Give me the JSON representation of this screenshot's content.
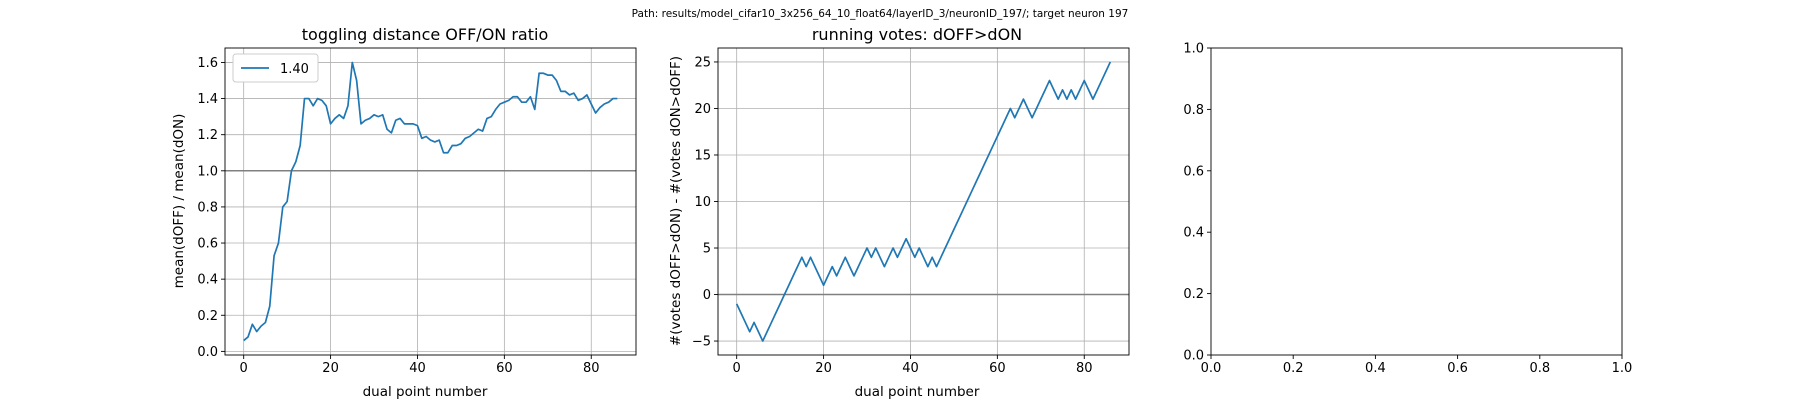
{
  "suptitle": "Path: results/model_cifar10_3x256_64_10_float64/layerID_3/neuronID_197/; target neuron 197",
  "chart_data": [
    {
      "type": "line",
      "title": "toggling distance OFF/ON ratio",
      "xlabel": "dual point number",
      "ylabel": "mean(dOFF) / mean(dON)",
      "xlim": [
        -4.3,
        90.3
      ],
      "ylim": [
        -0.02,
        1.68
      ],
      "xticks": [
        0,
        20,
        40,
        60,
        80
      ],
      "yticks": [
        0.0,
        0.2,
        0.4,
        0.6,
        0.8,
        1.0,
        1.2,
        1.4,
        1.6
      ],
      "ytick_labels": [
        "0.0",
        "0.2",
        "0.4",
        "0.6",
        "0.8",
        "1.0",
        "1.2",
        "1.4",
        "1.6"
      ],
      "grid": true,
      "legend": {
        "location": "upper left",
        "entries": [
          "1.40"
        ]
      },
      "hline": 1.0,
      "series": [
        {
          "name": "1.40",
          "color": "#1f77b4",
          "x": [
            0,
            1,
            2,
            3,
            4,
            5,
            6,
            7,
            8,
            9,
            10,
            11,
            12,
            13,
            14,
            15,
            16,
            17,
            18,
            19,
            20,
            21,
            22,
            23,
            24,
            25,
            26,
            27,
            28,
            29,
            30,
            31,
            32,
            33,
            34,
            35,
            36,
            37,
            38,
            39,
            40,
            41,
            42,
            43,
            44,
            45,
            46,
            47,
            48,
            49,
            50,
            51,
            52,
            53,
            54,
            55,
            56,
            57,
            58,
            59,
            60,
            61,
            62,
            63,
            64,
            65,
            66,
            67,
            68,
            69,
            70,
            71,
            72,
            73,
            74,
            75,
            76,
            77,
            78,
            79,
            80,
            81,
            82,
            83,
            84,
            85,
            86
          ],
          "y": [
            0.06,
            0.08,
            0.15,
            0.11,
            0.14,
            0.16,
            0.25,
            0.53,
            0.6,
            0.8,
            0.83,
            1.0,
            1.05,
            1.14,
            1.4,
            1.4,
            1.36,
            1.4,
            1.39,
            1.36,
            1.26,
            1.29,
            1.31,
            1.29,
            1.36,
            1.6,
            1.5,
            1.26,
            1.28,
            1.29,
            1.31,
            1.3,
            1.31,
            1.23,
            1.21,
            1.28,
            1.29,
            1.26,
            1.26,
            1.26,
            1.25,
            1.18,
            1.19,
            1.17,
            1.16,
            1.17,
            1.1,
            1.1,
            1.14,
            1.14,
            1.15,
            1.18,
            1.19,
            1.21,
            1.23,
            1.22,
            1.29,
            1.3,
            1.34,
            1.37,
            1.38,
            1.39,
            1.41,
            1.41,
            1.38,
            1.38,
            1.41,
            1.34,
            1.54,
            1.54,
            1.53,
            1.53,
            1.5,
            1.44,
            1.44,
            1.42,
            1.43,
            1.39,
            1.4,
            1.42,
            1.37,
            1.32,
            1.35,
            1.37,
            1.38,
            1.4,
            1.4
          ]
        }
      ]
    },
    {
      "type": "line",
      "title": "running votes: dOFF>dON",
      "xlabel": "dual point number",
      "ylabel": "#(votes dOFF>dON) - #(votes dON>dOFF)",
      "xlim": [
        -4.3,
        90.3
      ],
      "ylim": [
        -6.5,
        26.5
      ],
      "xticks": [
        0,
        20,
        40,
        60,
        80
      ],
      "yticks": [
        -5,
        0,
        5,
        10,
        15,
        20,
        25
      ],
      "ytick_labels": [
        "−5",
        "0",
        "5",
        "10",
        "15",
        "20",
        "25"
      ],
      "grid": true,
      "hline": 0,
      "series": [
        {
          "color": "#1f77b4",
          "x": [
            0,
            1,
            2,
            3,
            4,
            5,
            6,
            7,
            8,
            9,
            10,
            11,
            12,
            13,
            14,
            15,
            16,
            17,
            18,
            19,
            20,
            21,
            22,
            23,
            24,
            25,
            26,
            27,
            28,
            29,
            30,
            31,
            32,
            33,
            34,
            35,
            36,
            37,
            38,
            39,
            40,
            41,
            42,
            43,
            44,
            45,
            46,
            47,
            48,
            49,
            50,
            51,
            52,
            53,
            54,
            55,
            56,
            57,
            58,
            59,
            60,
            61,
            62,
            63,
            64,
            65,
            66,
            67,
            68,
            69,
            70,
            71,
            72,
            73,
            74,
            75,
            76,
            77,
            78,
            79,
            80,
            81,
            82,
            83,
            84,
            85,
            86
          ],
          "y": [
            -1,
            -2,
            -3,
            -4,
            -3,
            -4,
            -5,
            -4,
            -3,
            -2,
            -1,
            0,
            1,
            2,
            3,
            4,
            3,
            4,
            3,
            2,
            1,
            2,
            3,
            2,
            3,
            4,
            3,
            2,
            3,
            4,
            5,
            4,
            5,
            4,
            3,
            4,
            5,
            4,
            5,
            6,
            5,
            4,
            5,
            4,
            3,
            4,
            3,
            4,
            5,
            6,
            7,
            8,
            9,
            10,
            11,
            12,
            13,
            14,
            15,
            16,
            17,
            18,
            19,
            20,
            19,
            20,
            21,
            20,
            19,
            20,
            21,
            22,
            23,
            22,
            21,
            22,
            21,
            22,
            21,
            22,
            23,
            22,
            21,
            22,
            23,
            24,
            25
          ]
        }
      ]
    },
    {
      "type": "line",
      "title": "",
      "xlabel": "",
      "ylabel": "",
      "xlim": [
        0,
        1
      ],
      "ylim": [
        0,
        1
      ],
      "xticks": [
        0.0,
        0.2,
        0.4,
        0.6,
        0.8,
        1.0
      ],
      "yticks": [
        0.0,
        0.2,
        0.4,
        0.6,
        0.8,
        1.0
      ],
      "xtick_labels": [
        "0.0",
        "0.2",
        "0.4",
        "0.6",
        "0.8",
        "1.0"
      ],
      "ytick_labels": [
        "0.0",
        "0.2",
        "0.4",
        "0.6",
        "0.8",
        "1.0"
      ],
      "grid": false,
      "series": []
    }
  ]
}
